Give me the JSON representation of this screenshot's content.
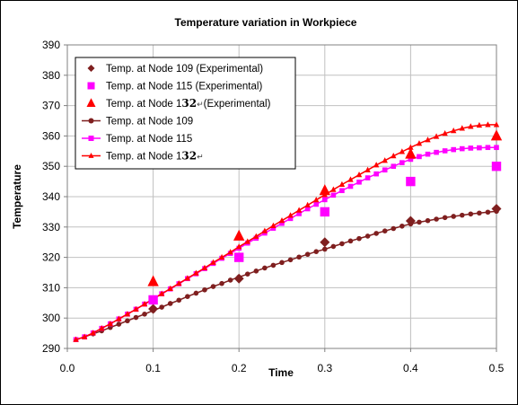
{
  "chart_data": {
    "type": "scatter",
    "title": "Temperature variation in Workpiece",
    "xlabel": "Time",
    "ylabel": "Temperature",
    "xlim": [
      0.0,
      0.5
    ],
    "ylim": [
      290,
      390
    ],
    "xticks": [
      "0.0",
      "0.1",
      "0.2",
      "0.3",
      "0.4",
      "0.5"
    ],
    "yticks": [
      "290",
      "300",
      "310",
      "320",
      "330",
      "340",
      "350",
      "360",
      "370",
      "380",
      "390"
    ],
    "grid": true,
    "legend_position": "top-left",
    "series": [
      {
        "name": "Temp. at Node 109 (Experimental)",
        "legend_prefix": "Temp. at Node 109 (Experimental)",
        "legend_bold": "",
        "legend_suffix": "",
        "kind": "marker",
        "marker": "diamond",
        "color": "#7f1f1f",
        "x": [
          0.1,
          0.2,
          0.3,
          0.4,
          0.5
        ],
        "y": [
          303,
          313,
          325,
          332,
          336
        ]
      },
      {
        "name": "Temp. at Node 115  (Experimental)",
        "legend_prefix": "Temp. at Node 115  (Experimental)",
        "legend_bold": "",
        "legend_suffix": "",
        "kind": "marker",
        "marker": "square",
        "color": "#ff00ff",
        "x": [
          0.1,
          0.2,
          0.3,
          0.4,
          0.5
        ],
        "y": [
          306,
          320,
          335,
          345,
          350
        ]
      },
      {
        "name": "Temp. at Node 132 (Experimental)",
        "legend_prefix": "Temp. at Node 1",
        "legend_bold": "32",
        "legend_suffix": "(Experimental)",
        "legend_mark": "↵",
        "kind": "marker",
        "marker": "triangle",
        "color": "#ff0000",
        "x": [
          0.1,
          0.2,
          0.3,
          0.4,
          0.5
        ],
        "y": [
          312,
          327,
          342,
          354,
          360
        ]
      },
      {
        "name": "Temp. at Node 109",
        "legend_prefix": "Temp. at Node 109",
        "legend_bold": "",
        "legend_suffix": "",
        "kind": "line",
        "marker": "circle",
        "color": "#7f1f1f",
        "x": [
          0.01,
          0.02,
          0.03,
          0.04,
          0.05,
          0.06,
          0.07,
          0.08,
          0.09,
          0.1,
          0.11,
          0.12,
          0.13,
          0.14,
          0.15,
          0.16,
          0.17,
          0.18,
          0.19,
          0.2,
          0.21,
          0.22,
          0.23,
          0.24,
          0.25,
          0.26,
          0.27,
          0.28,
          0.29,
          0.3,
          0.31,
          0.32,
          0.33,
          0.34,
          0.35,
          0.36,
          0.37,
          0.38,
          0.39,
          0.4,
          0.41,
          0.42,
          0.43,
          0.44,
          0.45,
          0.46,
          0.47,
          0.48,
          0.49,
          0.5
        ],
        "y": [
          292.9,
          293.8,
          294.8,
          295.8,
          296.9,
          298.0,
          299.1,
          300.2,
          301.3,
          302.5,
          303.6,
          304.8,
          305.9,
          307.1,
          308.2,
          309.3,
          310.4,
          311.4,
          312.5,
          313.5,
          314.5,
          315.5,
          316.5,
          317.4,
          318.3,
          319.2,
          320.1,
          321.0,
          321.9,
          322.7,
          323.6,
          324.5,
          325.4,
          326.2,
          327.0,
          327.9,
          328.7,
          329.5,
          330.3,
          331.0,
          331.6,
          332.1,
          332.6,
          333.1,
          333.5,
          333.9,
          334.3,
          334.6,
          334.9,
          335.2
        ]
      },
      {
        "name": "Temp. at Node 115",
        "legend_prefix": "Temp. at Node 115",
        "legend_bold": "",
        "legend_suffix": "",
        "kind": "line",
        "marker": "square",
        "color": "#ff00ff",
        "x": [
          0.01,
          0.02,
          0.03,
          0.04,
          0.05,
          0.06,
          0.07,
          0.08,
          0.09,
          0.1,
          0.11,
          0.12,
          0.13,
          0.14,
          0.15,
          0.16,
          0.17,
          0.18,
          0.19,
          0.2,
          0.21,
          0.22,
          0.23,
          0.24,
          0.25,
          0.26,
          0.27,
          0.28,
          0.29,
          0.3,
          0.31,
          0.32,
          0.33,
          0.34,
          0.35,
          0.36,
          0.37,
          0.38,
          0.39,
          0.4,
          0.41,
          0.42,
          0.43,
          0.44,
          0.45,
          0.46,
          0.47,
          0.48,
          0.49,
          0.5
        ],
        "y": [
          292.9,
          293.8,
          295.1,
          296.6,
          298.1,
          299.7,
          301.3,
          302.9,
          304.6,
          306.3,
          308.0,
          309.6,
          311.3,
          313.0,
          314.6,
          316.3,
          318.0,
          319.7,
          321.3,
          323.0,
          324.7,
          326.3,
          328.0,
          329.6,
          331.2,
          332.8,
          334.4,
          336.0,
          337.5,
          339.0,
          340.5,
          342.0,
          343.4,
          344.8,
          346.2,
          347.5,
          348.8,
          350.0,
          351.2,
          352.3,
          353.2,
          354.0,
          354.6,
          355.1,
          355.5,
          355.8,
          356.0,
          356.1,
          356.2,
          356.2
        ]
      },
      {
        "name": "Temp. at Node 132",
        "legend_prefix": "Temp. at Node 1",
        "legend_bold": "32",
        "legend_suffix": "",
        "legend_mark": "↵",
        "kind": "line",
        "marker": "triangle",
        "color": "#ff0000",
        "x": [
          0.01,
          0.02,
          0.03,
          0.04,
          0.05,
          0.06,
          0.07,
          0.08,
          0.09,
          0.1,
          0.11,
          0.12,
          0.13,
          0.14,
          0.15,
          0.16,
          0.17,
          0.18,
          0.19,
          0.2,
          0.21,
          0.22,
          0.23,
          0.24,
          0.25,
          0.26,
          0.27,
          0.28,
          0.29,
          0.3,
          0.31,
          0.32,
          0.33,
          0.34,
          0.35,
          0.36,
          0.37,
          0.38,
          0.39,
          0.4,
          0.41,
          0.42,
          0.43,
          0.44,
          0.45,
          0.46,
          0.47,
          0.48,
          0.49,
          0.5
        ],
        "y": [
          292.9,
          293.8,
          295.1,
          296.6,
          298.1,
          299.7,
          301.3,
          302.9,
          304.6,
          306.3,
          308.0,
          309.7,
          311.4,
          313.1,
          314.8,
          316.5,
          318.3,
          320.0,
          321.7,
          323.5,
          325.2,
          326.9,
          328.7,
          330.4,
          332.1,
          333.8,
          335.5,
          337.2,
          338.9,
          340.6,
          342.3,
          344.0,
          345.6,
          347.2,
          348.8,
          350.4,
          351.9,
          353.4,
          354.8,
          356.2,
          357.5,
          358.7,
          359.8,
          360.8,
          361.7,
          362.5,
          363.1,
          363.5,
          363.7,
          363.7
        ]
      }
    ]
  }
}
